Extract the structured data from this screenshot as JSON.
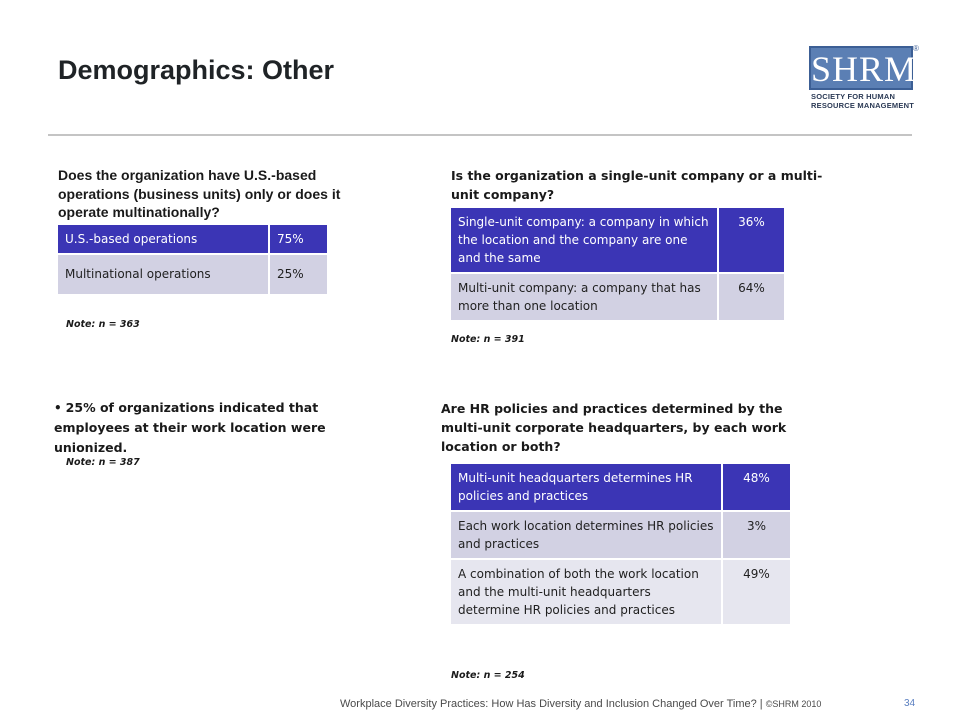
{
  "slide": {
    "title": "Demographics: Other",
    "logo": {
      "letters": "SHRM",
      "registered": "®",
      "subtitle_line1": "SOCIETY FOR HUMAN",
      "subtitle_line2": "RESOURCE MANAGEMENT",
      "brand_color": "#5b7fb4"
    }
  },
  "q1": {
    "question": "Does the organization have U.S.-based operations (business units) only or does it operate multinationally?",
    "rows": [
      {
        "label": "U.S.-based operations",
        "value": "75%"
      },
      {
        "label": "Multinational operations",
        "value": "25%"
      }
    ],
    "note": "Note: n = 363"
  },
  "q2": {
    "question": "Is the organization a single-unit company or a multi-unit company?",
    "rows": [
      {
        "label": "Single-unit company: a company in which the location and the company are one and the same",
        "value": "36%"
      },
      {
        "label": "Multi-unit company: a company that has more than one location",
        "value": "64%"
      }
    ],
    "note": "Note: n = 391"
  },
  "q3": {
    "bullet_symbol": "•",
    "statement": "25% of organizations indicated that employees at their work location were unionized.",
    "note": "Note: n = 387"
  },
  "q4": {
    "question": "Are HR policies and practices determined by the multi-unit corporate headquarters, by each work location or both?",
    "rows": [
      {
        "label": "Multi-unit headquarters determines HR policies and practices",
        "value": "48%"
      },
      {
        "label": "Each work location determines HR policies and practices",
        "value": "3%"
      },
      {
        "label": "A combination of both the work location and the multi-unit headquarters determine HR policies and practices",
        "value": "49%"
      }
    ],
    "note": "Note: n = 254"
  },
  "colors": {
    "header_row": "#3b35b5",
    "row_shade_1": "#d2d1e3",
    "row_shade_2": "#e6e6ef"
  },
  "footer": {
    "text": "Workplace Diversity Practices: How Has Diversity and Inclusion Changed Over Time?",
    "separator": "|",
    "copyright": "©SHRM 2010",
    "page_number": "34"
  }
}
